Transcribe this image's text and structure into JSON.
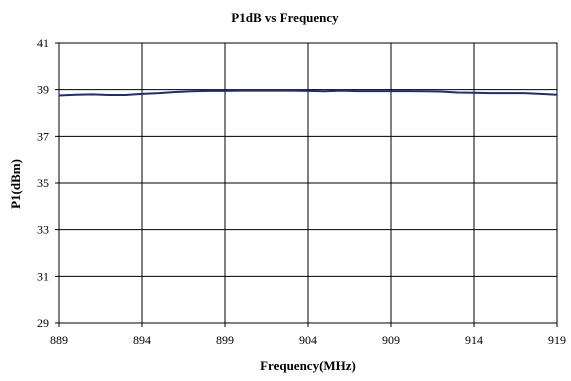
{
  "chart_data": {
    "type": "line",
    "title": "P1dB vs Frequency",
    "xlabel": "Frequency(MHz)",
    "ylabel": "P1(dBm)",
    "xlim": [
      889,
      919
    ],
    "ylim": [
      29,
      41
    ],
    "x_ticks": [
      889,
      894,
      899,
      904,
      909,
      914,
      919
    ],
    "y_ticks": [
      29,
      31,
      33,
      35,
      37,
      39,
      41
    ],
    "grid": true,
    "legend": "none",
    "series": [
      {
        "color": "#1f2a7a",
        "x": [
          889,
          890,
          891,
          892,
          893,
          894,
          895,
          896,
          897,
          898,
          899,
          900,
          901,
          902,
          903,
          904,
          905,
          906,
          907,
          908,
          909,
          910,
          911,
          912,
          913,
          914,
          915,
          916,
          917,
          918,
          919
        ],
        "y": [
          38.75,
          38.78,
          38.8,
          38.77,
          38.77,
          38.82,
          38.85,
          38.9,
          38.93,
          38.95,
          38.95,
          38.96,
          38.96,
          38.96,
          38.96,
          38.95,
          38.93,
          38.96,
          38.94,
          38.94,
          38.94,
          38.94,
          38.93,
          38.92,
          38.88,
          38.87,
          38.85,
          38.85,
          38.85,
          38.82,
          38.78
        ]
      }
    ]
  }
}
